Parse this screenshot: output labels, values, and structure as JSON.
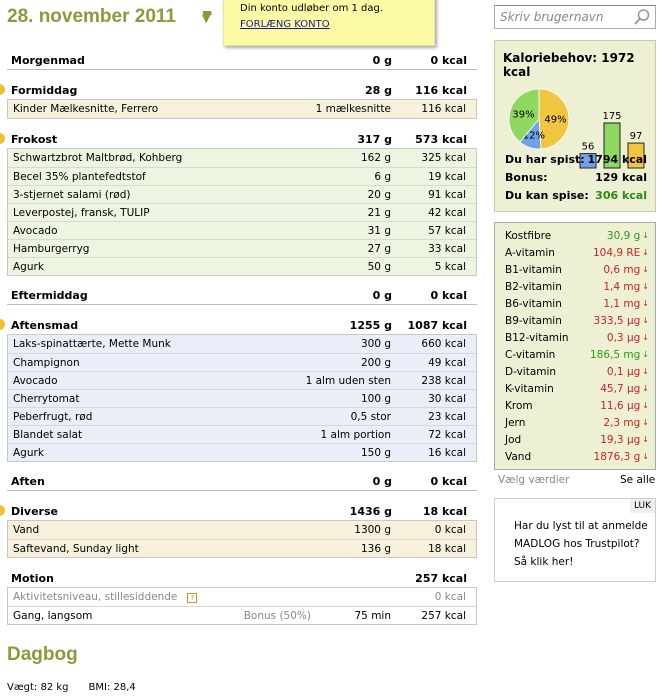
{
  "date": "28. november 2011",
  "note": {
    "text": "Din konto udløber om 1 dag.",
    "link": "FORLÆNG KONTO"
  },
  "meals": [
    {
      "name": "Morgenmad",
      "grams": "0 g",
      "kcal": "0 kcal",
      "dot": false,
      "color": "#ffffff",
      "items": []
    },
    {
      "name": "Formiddag",
      "grams": "28 g",
      "kcal": "116 kcal",
      "dot": true,
      "color": "#f7f1dc",
      "items": [
        [
          "Kinder Mælkesnitte, Ferrero",
          "1 mælkesnitte",
          "116 kcal"
        ]
      ]
    },
    {
      "name": "Frokost",
      "grams": "317 g",
      "kcal": "573 kcal",
      "dot": true,
      "color": "#edf5e0",
      "items": [
        [
          "Schwartzbrot Maltbrød, Kohberg",
          "162 g",
          "325 kcal"
        ],
        [
          "Becel 35% plantefedtstof",
          "6 g",
          "19 kcal"
        ],
        [
          "3-stjernet salami (rød)",
          "20 g",
          "91 kcal"
        ],
        [
          "Leverpostej, fransk, TULIP",
          "21 g",
          "42 kcal"
        ],
        [
          "Avocado",
          "31 g",
          "57 kcal"
        ],
        [
          "Hamburgerryg",
          "27 g",
          "33 kcal"
        ],
        [
          "Agurk",
          "50 g",
          "5 kcal"
        ]
      ]
    },
    {
      "name": "Eftermiddag",
      "grams": "0 g",
      "kcal": "0 kcal",
      "dot": false,
      "color": "#ffffff",
      "items": []
    },
    {
      "name": "Aftensmad",
      "grams": "1255 g",
      "kcal": "1087 kcal",
      "dot": true,
      "color": "#e9eef9",
      "items": [
        [
          "Laks-spinattærte, Mette Munk",
          "300 g",
          "660 kcal"
        ],
        [
          "Champignon",
          "200 g",
          "49 kcal"
        ],
        [
          "Avocado",
          "1 alm uden sten",
          "238 kcal"
        ],
        [
          "Cherrytomat",
          "100 g",
          "30 kcal"
        ],
        [
          "Peberfrugt, rød",
          "0,5 stor",
          "23 kcal"
        ],
        [
          "Blandet salat",
          "1 alm portion",
          "72 kcal"
        ],
        [
          "Agurk",
          "150 g",
          "16 kcal"
        ]
      ]
    },
    {
      "name": "Aften",
      "grams": "0 g",
      "kcal": "0 kcal",
      "dot": false,
      "color": "#ffffff",
      "items": []
    },
    {
      "name": "Diverse",
      "grams": "1436 g",
      "kcal": "18 kcal",
      "dot": true,
      "color": "#f7f1dc",
      "items": [
        [
          "Vand",
          "1300 g",
          "0 kcal"
        ],
        [
          "Saftevand, Sunday light",
          "136 g",
          "18 kcal"
        ]
      ]
    }
  ],
  "motion": {
    "name": "Motion",
    "kcal": "257 kcal",
    "activity": "Aktivitetsniveau, stillesiddende",
    "activity_kcal": "0 kcal",
    "exercise": "Gang, langsom",
    "bonus": "Bonus (50%)",
    "duration": "75 min",
    "exercise_kcal": "257 kcal"
  },
  "dagbog": {
    "title": "Dagbog",
    "weight": "Vægt: 82 kg",
    "bmi": "BMI: 28,4"
  },
  "search": {
    "placeholder": "Skriv brugernavn"
  },
  "calories": {
    "title": "Kaloriebehov: 1972 kcal",
    "pie": [
      {
        "label": "49%",
        "value": 49,
        "color": "#f0c640"
      },
      {
        "label": "12%",
        "value": 12,
        "color": "#6fa3e8"
      },
      {
        "label": "39%",
        "value": 39,
        "color": "#8fd860"
      }
    ],
    "bars": [
      {
        "label": "56",
        "value": 56,
        "color": "#6fa3e8"
      },
      {
        "label": "175",
        "value": 175,
        "color": "#8fd860"
      },
      {
        "label": "97",
        "value": 97,
        "color": "#f0c640"
      }
    ],
    "eaten_label": "Du har spist:",
    "eaten": "1794 kcal",
    "bonus_label": "Bonus:",
    "bonus": "129 kcal",
    "left_label": "Du kan spise:",
    "left": "306 kcal",
    "left_color": "#2a8a1a"
  },
  "nutrients": [
    {
      "name": "Kostfibre",
      "value": "30,9 g",
      "status": "ok"
    },
    {
      "name": "A-vitamin",
      "value": "104,9 RE",
      "status": "low"
    },
    {
      "name": "B1-vitamin",
      "value": "0,6 mg",
      "status": "low"
    },
    {
      "name": "B2-vitamin",
      "value": "1,4 mg",
      "status": "low"
    },
    {
      "name": "B6-vitamin",
      "value": "1,1 mg",
      "status": "low"
    },
    {
      "name": "B9-vitamin",
      "value": "333,5 µg",
      "status": "low"
    },
    {
      "name": "B12-vitamin",
      "value": "0,3 µg",
      "status": "low"
    },
    {
      "name": "C-vitamin",
      "value": "186,5 mg",
      "status": "ok"
    },
    {
      "name": "D-vitamin",
      "value": "0,1 µg",
      "status": "low"
    },
    {
      "name": "K-vitamin",
      "value": "45,7 µg",
      "status": "low"
    },
    {
      "name": "Krom",
      "value": "11,6 µg",
      "status": "low"
    },
    {
      "name": "Jern",
      "value": "2,3 mg",
      "status": "low"
    },
    {
      "name": "Jod",
      "value": "19,3 µg",
      "status": "low"
    },
    {
      "name": "Vand",
      "value": "1876,3 g",
      "status": "low"
    }
  ],
  "status_colors": {
    "ok": "#2a9a1a",
    "low": "#cc2222"
  },
  "nutrient_links": {
    "choose": "Vælg værdier",
    "all": "Se alle"
  },
  "trustpilot": {
    "close": "LUK",
    "text": [
      "Har du lyst til at anmelde",
      "MADLOG hos Trustpilot?",
      "Så klik her!"
    ]
  }
}
